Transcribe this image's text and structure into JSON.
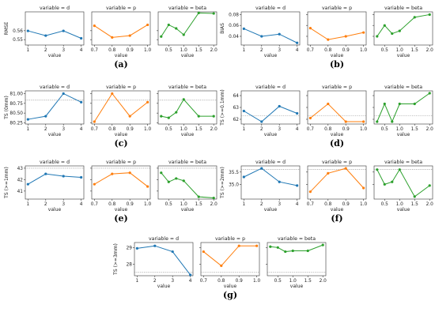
{
  "colors": {
    "d": "#1f77b4",
    "p": "#ff7f0e",
    "beta": "#2ca02c",
    "ref": "#888888"
  },
  "chart_data": [
    {
      "caption": "(a)",
      "type": "line",
      "ylabel": "RMSE",
      "yticks": [
        0.55,
        0.56
      ],
      "panels": [
        {
          "title": "variable = d",
          "series_key": "d",
          "xlabel": "value",
          "x": [
            1,
            2,
            3,
            4
          ],
          "xticks": [
            1,
            2,
            3,
            4
          ],
          "y": [
            0.5598,
            0.5545,
            0.5598,
            0.5515
          ]
        },
        {
          "title": "variable = p",
          "series_key": "p",
          "xlabel": "value",
          "x": [
            0.7,
            0.8,
            0.9,
            1.0
          ],
          "xticks": [
            "0.7",
            "0.8",
            "0.9",
            "1.0"
          ],
          "y": [
            0.5655,
            0.5525,
            0.5545,
            0.5665
          ]
        },
        {
          "title": "variable = beta",
          "series_key": "beta",
          "xlabel": "value",
          "x": [
            0.25,
            0.5,
            0.75,
            1.0,
            1.5,
            2.0
          ],
          "xticks": [
            "0.5",
            "1.0",
            "1.5",
            "2.0"
          ],
          "y": [
            0.5535,
            0.5665,
            0.5625,
            0.5555,
            0.5798,
            0.5792
          ]
        }
      ],
      "ylim": [
        0.544,
        0.581
      ]
    },
    {
      "caption": "(b)",
      "type": "line",
      "ylabel": "BIAS",
      "yticks": [
        0.04,
        0.06,
        0.08
      ],
      "panels": [
        {
          "title": "variable = d",
          "series_key": "d",
          "xlabel": "value",
          "x": [
            1,
            2,
            3,
            4
          ],
          "xticks": [
            1,
            2,
            3,
            4
          ],
          "y": [
            0.054,
            0.04,
            0.044,
            0.028
          ]
        },
        {
          "title": "variable = p",
          "series_key": "p",
          "xlabel": "value",
          "x": [
            0.7,
            0.8,
            0.9,
            1.0
          ],
          "xticks": [
            "0.7",
            "0.8",
            "0.9",
            "1.0"
          ],
          "y": [
            0.055,
            0.034,
            0.04,
            0.047
          ]
        },
        {
          "title": "variable = beta",
          "series_key": "beta",
          "xlabel": "value",
          "x": [
            0.25,
            0.5,
            0.75,
            1.0,
            1.5,
            2.0
          ],
          "xticks": [
            "0.5",
            "1.0",
            "1.5",
            "2.0"
          ],
          "y": [
            0.04,
            0.06,
            0.045,
            0.05,
            0.075,
            0.08
          ]
        }
      ],
      "ylim": [
        0.024,
        0.085
      ]
    },
    {
      "caption": "(c)",
      "type": "line",
      "ylabel": "TS (0mm)",
      "yticks": [
        80.25,
        80.5,
        80.75,
        81.0
      ],
      "ytick_labels": [
        "80.25",
        "80.50",
        "80.75",
        "81.00"
      ],
      "reference": 80.83,
      "panels": [
        {
          "title": "variable = d",
          "series_key": "d",
          "xlabel": "value",
          "x": [
            1,
            2,
            3,
            4
          ],
          "xticks": [
            1,
            2,
            3,
            4
          ],
          "y": [
            80.34,
            80.42,
            81.0,
            80.78
          ]
        },
        {
          "title": "variable = p",
          "series_key": "p",
          "xlabel": "value",
          "x": [
            0.7,
            0.8,
            0.9,
            1.0
          ],
          "xticks": [
            "0.7",
            "0.8",
            "0.9",
            "1.0"
          ],
          "y": [
            80.28,
            81.0,
            80.42,
            80.78
          ]
        },
        {
          "title": "variable = beta",
          "series_key": "beta",
          "xlabel": "value",
          "x": [
            0.25,
            0.5,
            0.75,
            1.0,
            1.5,
            2.0
          ],
          "xticks": [
            "0.5",
            "1.0",
            "1.5",
            "2.0"
          ],
          "y": [
            80.42,
            80.38,
            80.52,
            80.85,
            80.42,
            80.42
          ]
        }
      ],
      "ylim": [
        80.22,
        81.07
      ]
    },
    {
      "caption": "(d)",
      "type": "line",
      "ylabel": "TS (>=0.1mm)",
      "yticks": [
        62,
        63,
        64
      ],
      "reference": 62.3,
      "panels": [
        {
          "title": "variable = d",
          "series_key": "d",
          "xlabel": "value",
          "x": [
            1,
            2,
            3,
            4
          ],
          "xticks": [
            1,
            2,
            3,
            4
          ],
          "y": [
            62.7,
            61.8,
            63.1,
            62.5
          ]
        },
        {
          "title": "variable = p",
          "series_key": "p",
          "xlabel": "value",
          "x": [
            0.7,
            0.8,
            0.9,
            1.0
          ],
          "xticks": [
            "0.7",
            "0.8",
            "0.9",
            "1.0"
          ],
          "y": [
            62.1,
            63.3,
            61.8,
            61.8
          ]
        },
        {
          "title": "variable = beta",
          "series_key": "beta",
          "xlabel": "value",
          "x": [
            0.25,
            0.5,
            0.75,
            1.0,
            1.5,
            2.0
          ],
          "xticks": [
            "0.5",
            "1.0",
            "1.5",
            "2.0"
          ],
          "y": [
            61.8,
            63.3,
            61.8,
            63.3,
            63.3,
            64.2
          ]
        }
      ],
      "ylim": [
        61.6,
        64.4
      ]
    },
    {
      "caption": "(e)",
      "type": "line",
      "ylabel": "TS (>=1mm)",
      "yticks": [
        41,
        42,
        43
      ],
      "reference": 43.0,
      "panels": [
        {
          "title": "variable = d",
          "series_key": "d",
          "xlabel": "value",
          "x": [
            1,
            2,
            3,
            4
          ],
          "xticks": [
            1,
            2,
            3,
            4
          ],
          "y": [
            41.6,
            42.5,
            42.3,
            42.2
          ]
        },
        {
          "title": "variable = p",
          "series_key": "p",
          "xlabel": "value",
          "x": [
            0.7,
            0.8,
            0.9,
            1.0
          ],
          "xticks": [
            "0.7",
            "0.8",
            "0.9",
            "1.0"
          ],
          "y": [
            41.6,
            42.5,
            42.6,
            41.4
          ]
        },
        {
          "title": "variable = beta",
          "series_key": "beta",
          "xlabel": "value",
          "x": [
            0.25,
            0.5,
            0.75,
            1.0,
            1.5,
            2.0
          ],
          "xticks": [
            "0.5",
            "1.0",
            "1.5",
            "2.0"
          ],
          "y": [
            42.6,
            41.8,
            42.1,
            41.9,
            40.5,
            40.4
          ]
        }
      ],
      "ylim": [
        40.3,
        43.2
      ]
    },
    {
      "caption": "(f)",
      "type": "line",
      "ylabel": "TS (>=2mm)",
      "yticks": [
        35.0,
        35.5
      ],
      "ytick_labels": [
        "35.0",
        "35.5"
      ],
      "reference": 35.6,
      "panels": [
        {
          "title": "variable = d",
          "series_key": "d",
          "xlabel": "value",
          "x": [
            1,
            2,
            3,
            4
          ],
          "xticks": [
            1,
            2,
            3,
            4
          ],
          "y": [
            35.3,
            35.65,
            35.1,
            34.95
          ]
        },
        {
          "title": "variable = p",
          "series_key": "p",
          "xlabel": "value",
          "x": [
            0.7,
            0.8,
            0.9,
            1.0
          ],
          "xticks": [
            "0.7",
            "0.8",
            "0.9",
            "1.0"
          ],
          "y": [
            34.7,
            35.45,
            35.65,
            34.85
          ]
        },
        {
          "title": "variable = beta",
          "series_key": "beta",
          "xlabel": "value",
          "x": [
            0.25,
            0.5,
            0.75,
            1.0,
            1.5,
            2.0
          ],
          "xticks": [
            "0.5",
            "1.0",
            "1.5",
            "2.0"
          ],
          "y": [
            35.6,
            35.0,
            35.1,
            35.6,
            34.5,
            34.95
          ]
        }
      ],
      "ylim": [
        34.4,
        35.75
      ]
    },
    {
      "caption": "(g)",
      "type": "line",
      "ylabel": "TS (>=3mm)",
      "yticks": [
        28,
        29
      ],
      "reference": 27.5,
      "panels": [
        {
          "title": "variable = d",
          "series_key": "d",
          "xlabel": "value",
          "x": [
            1,
            2,
            3,
            4
          ],
          "xticks": [
            1,
            2,
            3,
            4
          ],
          "y": [
            28.95,
            29.1,
            28.75,
            27.35
          ]
        },
        {
          "title": "variable = p",
          "series_key": "p",
          "xlabel": "value",
          "x": [
            0.7,
            0.8,
            0.9,
            1.0
          ],
          "xticks": [
            "0.7",
            "0.8",
            "0.9",
            "1.0"
          ],
          "y": [
            28.75,
            27.9,
            29.1,
            29.1
          ]
        },
        {
          "title": "variable = beta",
          "series_key": "beta",
          "xlabel": "value",
          "x": [
            0.25,
            0.5,
            0.75,
            1.0,
            1.5,
            2.0
          ],
          "xticks": [
            "0.5",
            "1.0",
            "1.5",
            "2.0"
          ],
          "y": [
            29.05,
            29.0,
            28.75,
            28.8,
            28.8,
            29.15
          ]
        }
      ],
      "ylim": [
        27.3,
        29.3
      ]
    }
  ]
}
